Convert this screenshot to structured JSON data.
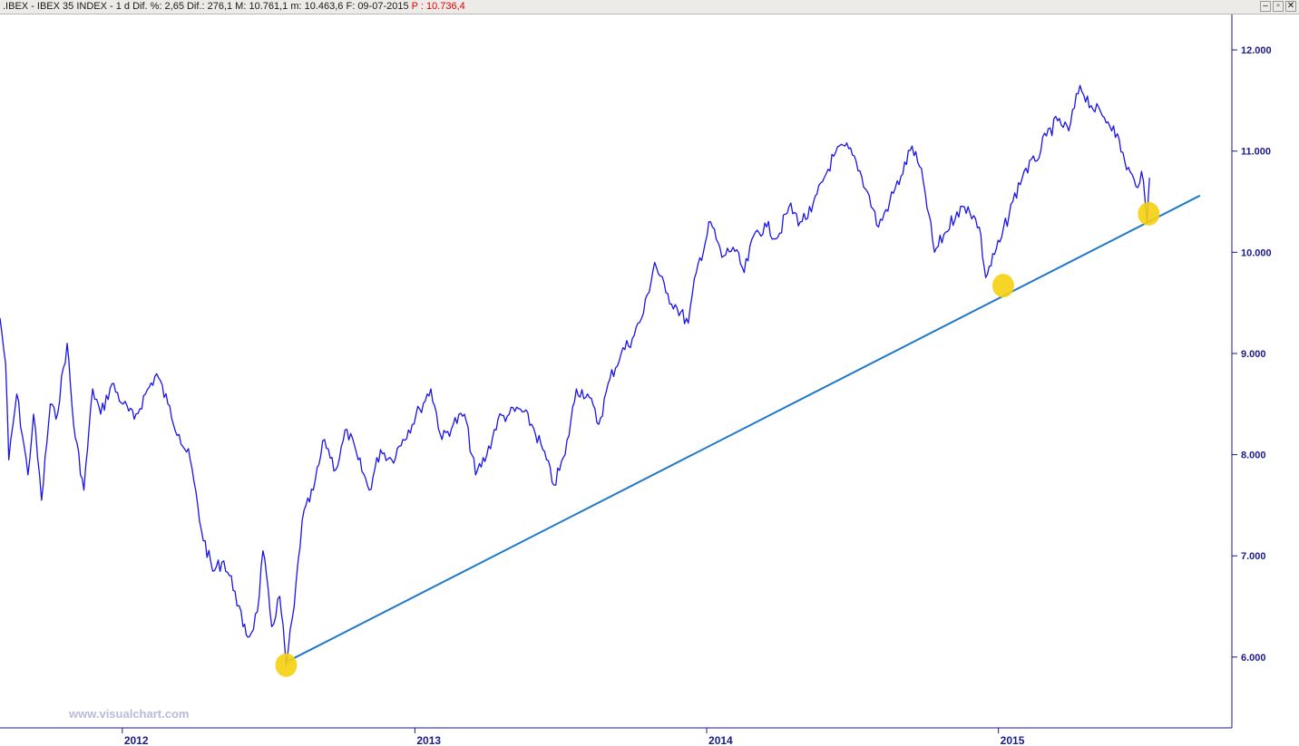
{
  "window": {
    "symbol": ".IBEX - IBEX 35 INDEX - ",
    "interval": "1 d",
    "stats": " Dif. %: 2,65  Dif.: 276,1  M: 10.761,1  m: 10.463,6  F: 09-07-2015 ",
    "price": "P : 10.736,4",
    "buttons": {
      "minimize": "–",
      "restore": "▫",
      "close": "✕"
    }
  },
  "watermark": "www.visualchart.com",
  "colors": {
    "price_line": "#1a14e6",
    "trend_line": "#1f78c8",
    "axis": "#1a1a8c",
    "marker": "#f5d010",
    "watermark": "#b8bcd8"
  },
  "icons": [
    "minimize-icon",
    "restore-icon",
    "close-icon"
  ],
  "chart_data": {
    "type": "line",
    "title": "",
    "xlabel": "",
    "ylabel": "",
    "x_ticks": [
      "2012",
      "2013",
      "2014",
      "2015"
    ],
    "y_ticks": [
      "6.000",
      "7.000",
      "8.000",
      "9.000",
      "10.000",
      "11.000",
      "12.000"
    ],
    "xlim": [
      "2011-08-01",
      "2015-10-20"
    ],
    "ylim": [
      5300,
      12350
    ],
    "grid": false,
    "series": [
      {
        "x": [
          "2011-08-01",
          "2011-08-08",
          "2011-08-12",
          "2011-08-22",
          "2011-09-05",
          "2011-09-12",
          "2011-09-22",
          "2011-10-03",
          "2011-10-10",
          "2011-10-24",
          "2011-11-01",
          "2011-11-14",
          "2011-11-25",
          "2011-12-05",
          "2011-12-19",
          "2012-01-02",
          "2012-01-16",
          "2012-01-30",
          "2012-02-13",
          "2012-02-27",
          "2012-03-12",
          "2012-03-26",
          "2012-04-09",
          "2012-04-23",
          "2012-05-07",
          "2012-05-21",
          "2012-05-31",
          "2012-06-08",
          "2012-06-18",
          "2012-06-25",
          "2012-07-06",
          "2012-07-16",
          "2012-07-24",
          "2012-08-03",
          "2012-08-13",
          "2012-08-27",
          "2012-09-10",
          "2012-09-24",
          "2012-10-08",
          "2012-10-22",
          "2012-11-05",
          "2012-11-19",
          "2012-12-03",
          "2012-12-17",
          "2013-01-07",
          "2013-01-21",
          "2013-02-04",
          "2013-02-18",
          "2013-03-04",
          "2013-03-18",
          "2013-04-01",
          "2013-04-15",
          "2013-04-29",
          "2013-05-13",
          "2013-05-27",
          "2013-06-10",
          "2013-06-24",
          "2013-07-08",
          "2013-07-22",
          "2013-08-05",
          "2013-08-19",
          "2013-09-02",
          "2013-09-16",
          "2013-09-30",
          "2013-10-14",
          "2013-10-28",
          "2013-11-11",
          "2013-11-25",
          "2013-12-09",
          "2013-12-19",
          "2014-01-06",
          "2014-01-20",
          "2014-02-03",
          "2014-02-17",
          "2014-03-03",
          "2014-03-17",
          "2014-03-31",
          "2014-04-14",
          "2014-04-28",
          "2014-05-12",
          "2014-05-26",
          "2014-06-09",
          "2014-06-23",
          "2014-07-07",
          "2014-07-21",
          "2014-08-04",
          "2014-08-18",
          "2014-09-01",
          "2014-09-15",
          "2014-09-29",
          "2014-10-13",
          "2014-10-27",
          "2014-11-10",
          "2014-11-24",
          "2014-12-08",
          "2014-12-16",
          "2015-01-05",
          "2015-01-19",
          "2015-02-02",
          "2015-02-16",
          "2015-03-02",
          "2015-03-16",
          "2015-03-30",
          "2015-04-13",
          "2015-04-27",
          "2015-05-11",
          "2015-05-25",
          "2015-06-08",
          "2015-06-22",
          "2015-06-29",
          "2015-07-06",
          "2015-07-09"
        ],
        "values": [
          9350,
          8900,
          7950,
          8600,
          7800,
          8400,
          7550,
          8500,
          8350,
          9100,
          8300,
          7650,
          8650,
          8400,
          8700,
          8500,
          8350,
          8600,
          8800,
          8500,
          8200,
          7950,
          7250,
          6850,
          6950,
          6650,
          6300,
          6200,
          6450,
          7050,
          6300,
          6600,
          5920,
          6500,
          7350,
          7650,
          8150,
          7850,
          8250,
          7950,
          7650,
          8050,
          7950,
          8150,
          8450,
          8650,
          8150,
          8300,
          8400,
          7800,
          8000,
          8350,
          8400,
          8450,
          8300,
          8050,
          7700,
          8000,
          8650,
          8600,
          8300,
          8750,
          9000,
          9150,
          9400,
          9900,
          9600,
          9450,
          9300,
          9800,
          10300,
          9950,
          10050,
          9800,
          10200,
          10250,
          10150,
          10450,
          10300,
          10400,
          10700,
          10950,
          11050,
          10900,
          10600,
          10250,
          10500,
          10750,
          11050,
          10700,
          10000,
          10200,
          10400,
          10450,
          10250,
          9750,
          10150,
          10500,
          10800,
          10900,
          11150,
          11300,
          11200,
          11650,
          11450,
          11350,
          11250,
          10900,
          10650,
          10800,
          10300,
          10736
        ]
      }
    ],
    "trend_line": {
      "from": [
        "2012-07-24",
        5950
      ],
      "to": [
        "2015-09-10",
        10560
      ]
    },
    "markers": [
      {
        "x": "2012-07-24",
        "y": 5920
      },
      {
        "x": "2015-01-07",
        "y": 9670
      },
      {
        "x": "2015-07-08",
        "y": 10380
      }
    ],
    "legend": "none"
  }
}
